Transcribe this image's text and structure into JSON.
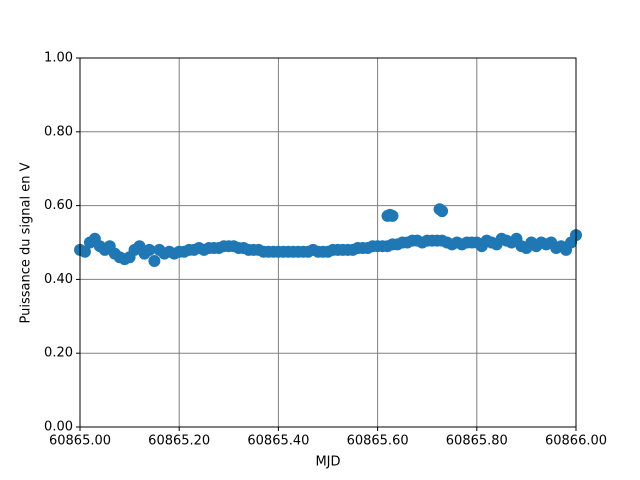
{
  "chart_data": {
    "type": "scatter",
    "xlabel": "MJD",
    "ylabel": "Puissance du signal en V",
    "color": "#1f77b4",
    "grid": true,
    "xlim": [
      60865.0,
      60866.0
    ],
    "xticks": [
      {
        "value": 60865.0,
        "label": "60865.00"
      },
      {
        "value": 60865.2,
        "label": "60865.20"
      },
      {
        "value": 60865.4,
        "label": "60865.40"
      },
      {
        "value": 60865.6,
        "label": "60865.60"
      },
      {
        "value": 60865.8,
        "label": "60865.80"
      },
      {
        "value": 60866.0,
        "label": "60866.00"
      }
    ],
    "ylim": [
      0,
      1
    ],
    "yticks": [
      {
        "value": 0,
        "label": "0.00"
      },
      {
        "value": 0.2,
        "label": "0.20"
      },
      {
        "value": 0.4,
        "label": "0.40"
      },
      {
        "value": 0.6,
        "label": "0.60"
      },
      {
        "value": 0.8,
        "label": "0.80"
      },
      {
        "value": 1,
        "label": "1.00"
      }
    ],
    "x": [
      60865.0,
      60865.01,
      60865.02,
      60865.03,
      60865.04,
      60865.05,
      60865.06,
      60865.07,
      60865.08,
      60865.09,
      60865.1,
      60865.11,
      60865.12,
      60865.13,
      60865.14,
      60865.15,
      60865.16,
      60865.17,
      60865.18,
      60865.19,
      60865.2,
      60865.21,
      60865.22,
      60865.23,
      60865.24,
      60865.25,
      60865.26,
      60865.27,
      60865.28,
      60865.29,
      60865.3,
      60865.31,
      60865.32,
      60865.33,
      60865.34,
      60865.35,
      60865.36,
      60865.37,
      60865.38,
      60865.39,
      60865.4,
      60865.41,
      60865.42,
      60865.43,
      60865.44,
      60865.45,
      60865.46,
      60865.47,
      60865.48,
      60865.49,
      60865.5,
      60865.51,
      60865.52,
      60865.53,
      60865.54,
      60865.55,
      60865.56,
      60865.57,
      60865.58,
      60865.59,
      60865.6,
      60865.61,
      60865.62,
      60865.63,
      60865.64,
      60865.65,
      60865.66,
      60865.67,
      60865.68,
      60865.69,
      60865.7,
      60865.71,
      60865.72,
      60865.73,
      60865.74,
      60865.75,
      60865.76,
      60865.77,
      60865.78,
      60865.79,
      60865.8,
      60865.81,
      60865.82,
      60865.83,
      60865.84,
      60865.85,
      60865.86,
      60865.87,
      60865.88,
      60865.89,
      60865.9,
      60865.91,
      60865.92,
      60865.93,
      60865.94,
      60865.95,
      60865.96,
      60865.97,
      60865.98,
      60865.99,
      60866.0,
      60865.62,
      60865.625,
      60865.63,
      60865.725,
      60865.73
    ],
    "values": [
      0.48,
      0.475,
      0.5,
      0.51,
      0.49,
      0.48,
      0.49,
      0.47,
      0.46,
      0.455,
      0.46,
      0.48,
      0.49,
      0.47,
      0.48,
      0.45,
      0.48,
      0.47,
      0.475,
      0.47,
      0.475,
      0.475,
      0.48,
      0.48,
      0.485,
      0.48,
      0.485,
      0.485,
      0.485,
      0.49,
      0.49,
      0.49,
      0.485,
      0.485,
      0.48,
      0.48,
      0.48,
      0.475,
      0.475,
      0.475,
      0.475,
      0.475,
      0.475,
      0.475,
      0.475,
      0.475,
      0.475,
      0.48,
      0.475,
      0.475,
      0.475,
      0.48,
      0.48,
      0.48,
      0.48,
      0.48,
      0.485,
      0.485,
      0.485,
      0.49,
      0.49,
      0.49,
      0.49,
      0.495,
      0.495,
      0.5,
      0.5,
      0.505,
      0.505,
      0.5,
      0.505,
      0.505,
      0.505,
      0.505,
      0.5,
      0.495,
      0.5,
      0.495,
      0.5,
      0.5,
      0.5,
      0.49,
      0.505,
      0.5,
      0.495,
      0.51,
      0.505,
      0.5,
      0.51,
      0.49,
      0.485,
      0.5,
      0.49,
      0.5,
      0.495,
      0.5,
      0.485,
      0.49,
      0.48,
      0.5,
      0.52,
      0.572,
      0.575,
      0.572,
      0.59,
      0.585
    ]
  }
}
